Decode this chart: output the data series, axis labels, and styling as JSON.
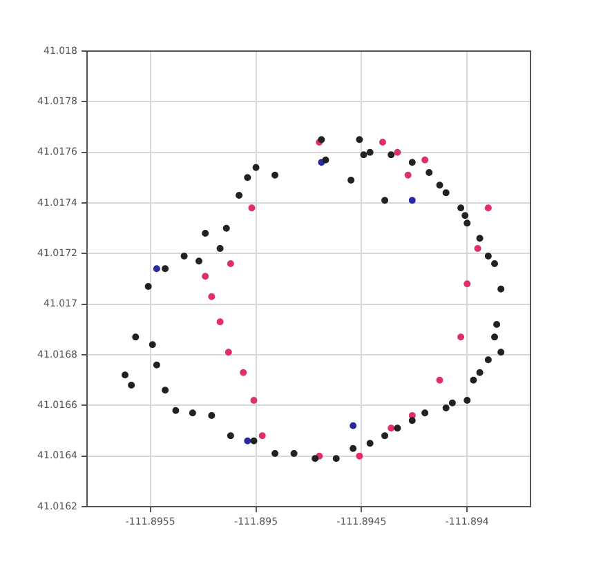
{
  "chart_data": {
    "type": "scatter",
    "xlim": [
      -111.8958,
      -111.8937
    ],
    "xticks": [
      -111.8955,
      -111.895,
      -111.8945,
      -111.894
    ],
    "ylim": [
      41.0162,
      41.018
    ],
    "yticks": [
      41.0162,
      41.0164,
      41.0166,
      41.0168,
      41.017,
      41.0172,
      41.0174,
      41.0176,
      41.0178,
      41.018
    ],
    "grid": true,
    "legend": false,
    "marker": "circle",
    "series": [
      {
        "color": "#222222",
        "x": [
          -111.89469,
          -111.89451,
          -111.89449,
          -111.89446,
          -111.89436,
          -111.89426,
          -111.89418,
          -111.89413,
          -111.8941,
          -111.89403,
          -111.89401,
          -111.894,
          -111.89394,
          -111.8939,
          -111.89387,
          -111.89384,
          -111.89386,
          -111.89387,
          -111.89384,
          -111.8939,
          -111.89394,
          -111.89397,
          -111.894,
          -111.89407,
          -111.8941,
          -111.8942,
          -111.89426,
          -111.89433,
          -111.89439,
          -111.89446,
          -111.89454,
          -111.89462,
          -111.89472,
          -111.89482,
          -111.89491,
          -111.89501,
          -111.89512,
          -111.89521,
          -111.8953,
          -111.89538,
          -111.89543,
          -111.89547,
          -111.89549,
          -111.89557,
          -111.89559,
          -111.89562,
          -111.89551,
          -111.89543,
          -111.89534,
          -111.89524,
          -111.89514,
          -111.89508,
          -111.89504,
          -111.895,
          -111.89491,
          -111.89467,
          -111.89455,
          -111.89439,
          -111.89527,
          -111.89517
        ],
        "values": [
          41.01765,
          41.01765,
          41.01759,
          41.0176,
          41.01759,
          41.01756,
          41.01752,
          41.01747,
          41.01744,
          41.01738,
          41.01735,
          41.01732,
          41.01726,
          41.01719,
          41.01716,
          41.01706,
          41.01692,
          41.01687,
          41.01681,
          41.01678,
          41.01673,
          41.0167,
          41.01662,
          41.01661,
          41.01659,
          41.01657,
          41.01654,
          41.01651,
          41.01648,
          41.01645,
          41.01643,
          41.01639,
          41.01639,
          41.01641,
          41.01641,
          41.01646,
          41.01648,
          41.01656,
          41.01657,
          41.01658,
          41.01666,
          41.01676,
          41.01684,
          41.01687,
          41.01668,
          41.01672,
          41.01707,
          41.01714,
          41.01719,
          41.01728,
          41.0173,
          41.01743,
          41.0175,
          41.01754,
          41.01751,
          41.01757,
          41.01749,
          41.01741,
          41.01717,
          41.01722
        ]
      },
      {
        "color": "#e0306a",
        "x": [
          -111.8947,
          -111.8944,
          -111.89433,
          -111.8942,
          -111.8939,
          -111.89395,
          -111.894,
          -111.89403,
          -111.89413,
          -111.89426,
          -111.89436,
          -111.89451,
          -111.8947,
          -111.89497,
          -111.89501,
          -111.89506,
          -111.89513,
          -111.89517,
          -111.89521,
          -111.89524,
          -111.89512,
          -111.89502,
          -111.89428
        ],
        "values": [
          41.01764,
          41.01764,
          41.0176,
          41.01757,
          41.01738,
          41.01722,
          41.01708,
          41.01687,
          41.0167,
          41.01656,
          41.01651,
          41.0164,
          41.0164,
          41.01648,
          41.01662,
          41.01673,
          41.01681,
          41.01693,
          41.01703,
          41.01711,
          41.01716,
          41.01738,
          41.01751
        ]
      },
      {
        "color": "#2a2aa0",
        "x": [
          -111.89469,
          -111.89426,
          -111.89547,
          -111.89504,
          -111.89454
        ],
        "values": [
          41.01756,
          41.01741,
          41.01714,
          41.01646,
          41.01652
        ]
      }
    ]
  }
}
